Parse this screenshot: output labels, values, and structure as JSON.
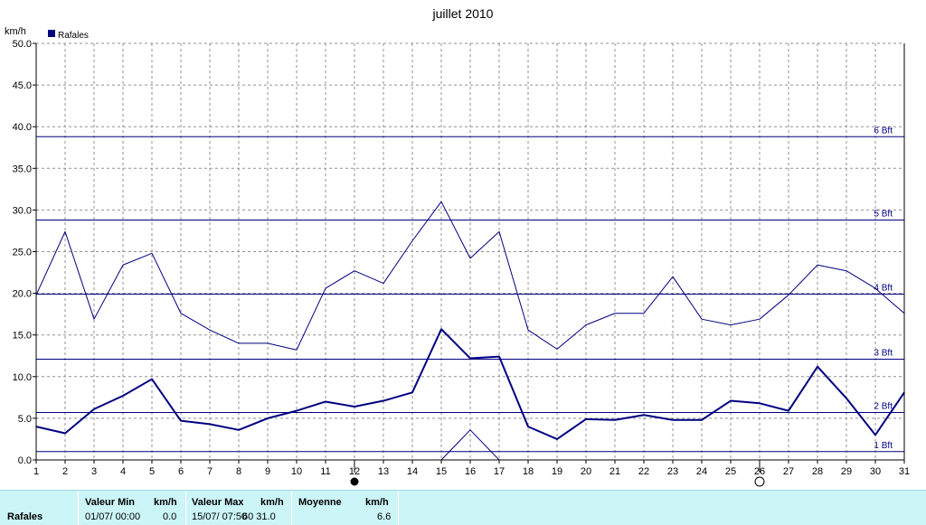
{
  "chart_data": {
    "type": "line",
    "title": "juillet 2010",
    "ylabel": "km/h",
    "legend": {
      "label": "Rafales",
      "color": "#000080",
      "placement": "top-left"
    },
    "ylim": [
      0,
      50
    ],
    "y_ticks": [
      "0.0",
      "5.0",
      "10.0",
      "15.0",
      "20.0",
      "25.0",
      "30.0",
      "35.0",
      "40.0",
      "45.0",
      "50.0"
    ],
    "x": [
      1,
      2,
      3,
      4,
      5,
      6,
      7,
      8,
      9,
      10,
      11,
      12,
      13,
      14,
      15,
      16,
      17,
      18,
      19,
      20,
      21,
      22,
      23,
      24,
      25,
      26,
      27,
      28,
      29,
      30,
      31
    ],
    "grid": true,
    "beaufort": [
      {
        "label": "1 Bft",
        "value": 1.0
      },
      {
        "label": "2 Bft",
        "value": 5.7
      },
      {
        "label": "3 Bft",
        "value": 12.1
      },
      {
        "label": "4 Bft",
        "value": 19.9
      },
      {
        "label": "5 Bft",
        "value": 28.8
      },
      {
        "label": "6 Bft",
        "value": 38.8
      }
    ],
    "series": [
      {
        "role": "max",
        "color": "#000080",
        "values": [
          19.8,
          27.4,
          16.9,
          23.4,
          24.8,
          17.6,
          15.6,
          14.0,
          14.0,
          13.2,
          20.6,
          22.7,
          21.2,
          26.3,
          31.0,
          24.2,
          27.4,
          15.6,
          13.3,
          16.2,
          17.6,
          17.6,
          22.0,
          16.9,
          16.2,
          16.9,
          19.8,
          23.4,
          22.7,
          20.6,
          17.6
        ]
      },
      {
        "role": "mean",
        "color": "#000080",
        "values": [
          4.0,
          3.2,
          6.1,
          7.7,
          9.7,
          4.7,
          4.3,
          3.6,
          5.0,
          5.9,
          7.0,
          6.4,
          7.1,
          8.1,
          15.7,
          12.2,
          12.4,
          4.0,
          2.5,
          4.9,
          4.8,
          5.4,
          4.8,
          4.8,
          7.1,
          6.8,
          5.9,
          11.2,
          7.4,
          3.0,
          8.1
        ]
      },
      {
        "role": "min",
        "color": "#000080",
        "x": [
          15,
          16,
          17
        ],
        "values": [
          0.0,
          3.6,
          0.0
        ]
      }
    ],
    "moon_phases": [
      {
        "day": 12,
        "phase": "new",
        "color": "#000000"
      },
      {
        "day": 26,
        "phase": "full",
        "color": "#ffffff"
      }
    ]
  },
  "stats": {
    "row_label": "Rafales",
    "min": {
      "header": "Valeur Min",
      "unit": "km/h",
      "when": "01/07/  00:00",
      "value": "0.0"
    },
    "max": {
      "header": "Valeur Max",
      "unit": "km/h",
      "when": "15/07/  07:50",
      "value": "60 31.0"
    },
    "avg": {
      "header": "Moyenne",
      "unit": "km/h",
      "value": "6.6"
    }
  }
}
